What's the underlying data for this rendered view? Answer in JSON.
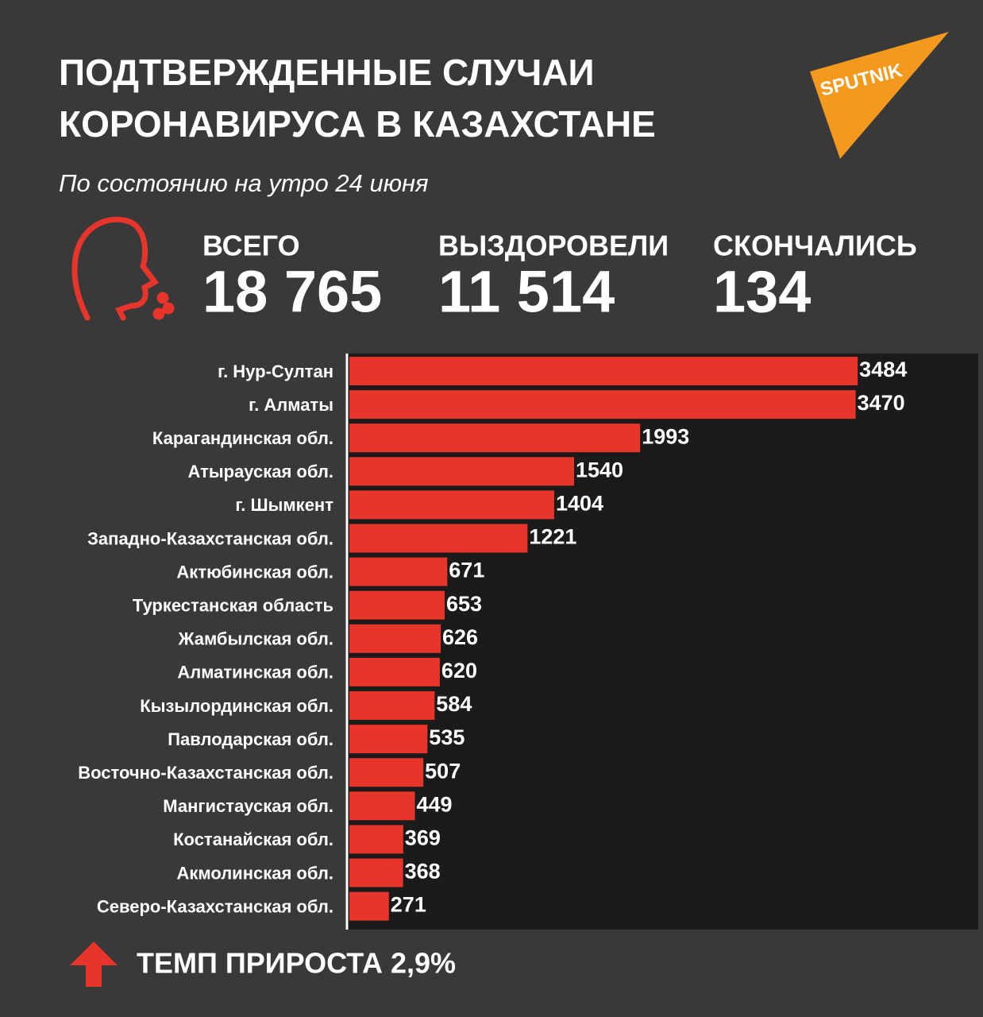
{
  "chart_data": {
    "type": "bar",
    "title": [
      "ПОДТВЕРЖДЕННЫЕ СЛУЧАИ",
      "КОРОНАВИРУСА В КАЗАХСТАНЕ"
    ],
    "subtitle": "По состоянию на утро 24 июня",
    "logo": "SPUTNIK",
    "stats": [
      {
        "label": "ВСЕГО",
        "value": "18 765",
        "color": "#e8352b"
      },
      {
        "label": "ВЫЗДОРОВЕЛИ",
        "value": "11 514",
        "color": "#7ec563"
      },
      {
        "label": "СКОНЧАЛИСЬ",
        "value": "134",
        "color": "#9b9b9b"
      }
    ],
    "categories": [
      "г. Нур-Султан",
      "г. Алматы",
      "Карагандинская обл.",
      "Атырауская обл.",
      "г. Шымкент",
      "Западно-Казахстанская обл.",
      "Актюбинская обл.",
      "Туркестанская область",
      "Жамбылская обл.",
      "Алматинская обл.",
      "Кызылординская обл.",
      "Павлодарская обл.",
      "Восточно-Казахстанская обл.",
      "Мангистауская обл.",
      "Костанайская обл.",
      "Акмолинская обл.",
      "Северо-Казахстанская обл."
    ],
    "values": [
      3484,
      3470,
      1993,
      1540,
      1404,
      1221,
      671,
      653,
      626,
      620,
      584,
      535,
      507,
      449,
      369,
      368,
      271
    ],
    "color": "#e8352b",
    "xlim": [
      0,
      4000
    ],
    "footer": "ТЕМП ПРИРОСТА 2,9%"
  }
}
